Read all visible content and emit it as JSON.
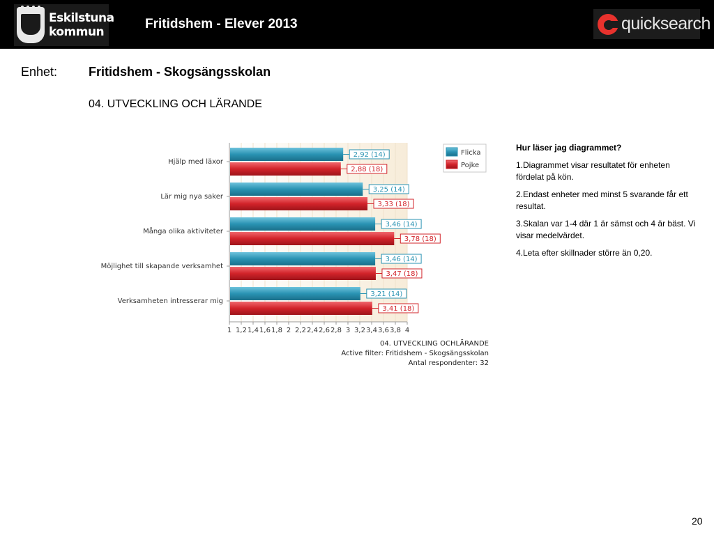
{
  "header": {
    "org_name_line1": "Eskilstuna",
    "org_name_line2": "kommun",
    "title": "Fritidshem - Elever 2013",
    "brand": "quicksearch"
  },
  "unit": {
    "label": "Enhet:",
    "value": "Fritidshem - Skogsängsskolan"
  },
  "section_title": "04. UTVECKLING OCH LÄRANDE",
  "help": {
    "title": "Hur läser jag diagrammet?",
    "points": [
      "1.Diagrammet visar resultatet för enheten fördelat på kön.",
      "2.Endast enheter med minst  5 svarande får ett resultat.",
      "3.Skalan var 1-4 där 1 är sämst och 4 är bäst. Vi visar medelvärdet.",
      "4.Leta efter skillnader större än 0,20."
    ]
  },
  "page_number": "20",
  "chart_data": {
    "type": "bar",
    "orientation": "horizontal",
    "categories": [
      "Hjälp med läxor",
      "Lär mig nya saker",
      "Många olika aktiviteter",
      "Möjlighet till skapande verksamhet",
      "Verksamheten intresserar mig"
    ],
    "series": [
      {
        "name": "Flicka",
        "color": "#2a93b3",
        "values": [
          2.92,
          3.25,
          3.46,
          3.46,
          3.21
        ],
        "labels": [
          "2,92 (14)",
          "3,25 (14)",
          "3,46 (14)",
          "3,46 (14)",
          "3,21 (14)"
        ]
      },
      {
        "name": "Pojke",
        "color": "#d2232a",
        "values": [
          2.88,
          3.33,
          3.78,
          3.47,
          3.41
        ],
        "labels": [
          "2,88 (18)",
          "3,33 (18)",
          "3,78 (18)",
          "3,47 (18)",
          "3,41 (18)"
        ]
      }
    ],
    "xlim": [
      1,
      4
    ],
    "x_ticks": [
      "1",
      "1,2",
      "1,4",
      "1,6",
      "1,8",
      "2",
      "2,2",
      "2,4",
      "2,6",
      "2,8",
      "3",
      "3,2",
      "3,4",
      "3,6",
      "3,8",
      "4"
    ],
    "legend_position": "top-right",
    "footer_lines": [
      "04. UTVECKLING OCHLÄRANDE",
      "Active filter: Fritidshem - Skogsängsskolan",
      "Antal respondenter: 32"
    ]
  }
}
